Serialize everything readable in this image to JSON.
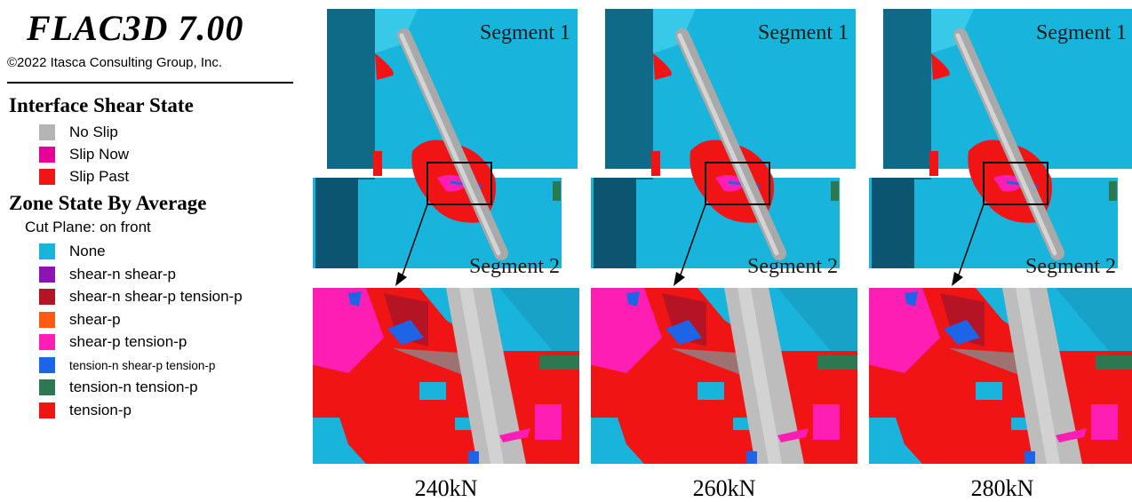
{
  "app": {
    "title": "FLAC3D 7.00",
    "copyright": "©2022 Itasca Consulting Group, Inc."
  },
  "interface_legend": {
    "title": "Interface Shear State",
    "items": [
      {
        "label": "No Slip",
        "color": "#b4b4b4"
      },
      {
        "label": "Slip Now",
        "color": "#e6009a"
      },
      {
        "label": "Slip Past",
        "color": "#f01414"
      }
    ]
  },
  "zone_legend": {
    "title": "Zone State By Average",
    "subtitle": "Cut Plane: on front",
    "items": [
      {
        "label": "None",
        "color": "#19b4dc"
      },
      {
        "label": "shear-n shear-p",
        "color": "#8c14b4"
      },
      {
        "label": "shear-n shear-p tension-p",
        "color": "#b41423"
      },
      {
        "label": "shear-p",
        "color": "#ff5a14"
      },
      {
        "label": "shear-p tension-p",
        "color": "#ff1eb4"
      },
      {
        "label": "tension-n shear-p tension-p",
        "color": "#1e64e6"
      },
      {
        "label": "tension-n tension-p",
        "color": "#2d7850"
      },
      {
        "label": "tension-p",
        "color": "#f01414"
      }
    ]
  },
  "panels": [
    {
      "segment_top": "Segment 1",
      "segment_bottom": "Segment 2",
      "load": "240kN"
    },
    {
      "segment_top": "Segment 1",
      "segment_bottom": "Segment 2",
      "load": "260kN"
    },
    {
      "segment_top": "Segment 1",
      "segment_bottom": "Segment 2",
      "load": "280kN"
    }
  ]
}
